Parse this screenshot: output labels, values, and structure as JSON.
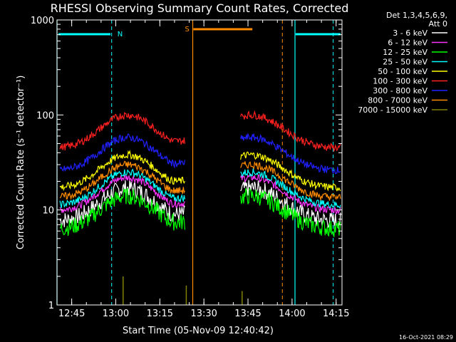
{
  "chart_data": {
    "type": "line",
    "title": "RHESSI Observing Summary Count Rates, Corrected",
    "xlabel": "Start Time (05-Nov-09 12:40:42)",
    "ylabel": "Corrected Count Rate (s⁻¹ detector⁻¹)",
    "yscale": "log",
    "ylim": [
      1,
      1000
    ],
    "xlim_minutes_after_1240": [
      0,
      97
    ],
    "x_ticks": [
      "12:45",
      "13:00",
      "13:15",
      "13:30",
      "13:45",
      "14:00",
      "14:15"
    ],
    "y_ticks": [
      "1",
      "10",
      "100",
      "1000"
    ],
    "legend_header": [
      "Det 1,3,4,5,6,9,",
      "Att 0"
    ],
    "legend_position": "top-right",
    "timestamp": "16-Oct-2021 08:29",
    "flags": [
      {
        "label": "N",
        "color": "#00ffff"
      },
      {
        "label": "S",
        "color": "#ff8c00"
      }
    ],
    "series": [
      {
        "name": "3 - 6 keV",
        "color": "#ffffff",
        "level": 17
      },
      {
        "name": "6 - 12 keV",
        "color": "#ff33ff",
        "level": 22
      },
      {
        "name": "12 - 25 keV",
        "color": "#00ff00",
        "level": 14
      },
      {
        "name": "25 - 50 keV",
        "color": "#00ffff",
        "level": 25
      },
      {
        "name": "50 - 100 keV",
        "color": "#ffff00",
        "level": 38
      },
      {
        "name": "100 - 300 keV",
        "color": "#ff2020",
        "level": 100
      },
      {
        "name": "300 - 800 keV",
        "color": "#2020ff",
        "level": 58
      },
      {
        "name": "800 - 7000 keV",
        "color": "#ff8c00",
        "level": 30
      },
      {
        "name": "7000 - 15000 keV",
        "color": "#808000",
        "level": 1
      }
    ]
  }
}
